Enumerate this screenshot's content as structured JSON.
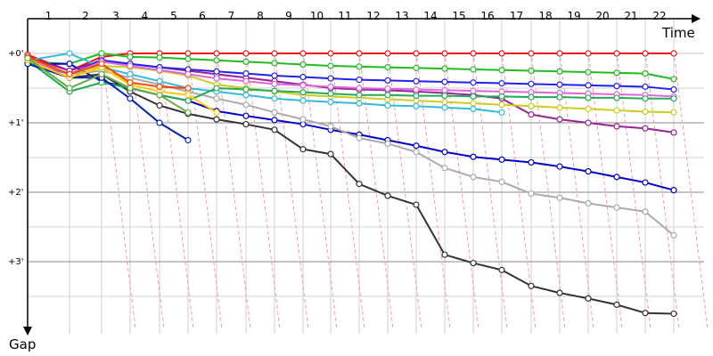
{
  "chart_data": {
    "type": "line",
    "title": "",
    "xlabel": "Time",
    "ylabel": "Gap",
    "y_unit": "minutes",
    "x_tick_labels": [
      "1",
      "2",
      "3",
      "4",
      "5",
      "6",
      "7",
      "8",
      "9",
      "10",
      "11",
      "12",
      "13",
      "14",
      "15",
      "16",
      "17",
      "18",
      "19",
      "20",
      "21",
      "22"
    ],
    "y_tick_labels": [
      "+0'",
      "+1'",
      "+2'",
      "+3'"
    ],
    "ylim": [
      0,
      4
    ],
    "grid": true,
    "legend": "none",
    "series": [
      {
        "color": "#ee1111",
        "points": [
          [
            0,
            0.02
          ],
          [
            1,
            0.25
          ],
          [
            2,
            0.05
          ],
          [
            3,
            0.0
          ],
          [
            4,
            0.0
          ],
          [
            5,
            0.0
          ],
          [
            6,
            0.0
          ],
          [
            7,
            0.0
          ],
          [
            8,
            0.0
          ],
          [
            9,
            0.0
          ],
          [
            10,
            0.0
          ],
          [
            11,
            0.0
          ],
          [
            12,
            0.0
          ],
          [
            13,
            0.0
          ],
          [
            14,
            0.0
          ],
          [
            15,
            0.0
          ],
          [
            16,
            0.0
          ],
          [
            17,
            0.0
          ],
          [
            18,
            0.0
          ],
          [
            19,
            0.0
          ],
          [
            20,
            0.0
          ],
          [
            21,
            0.0
          ],
          [
            22,
            0.0
          ]
        ]
      },
      {
        "color": "#22bb22",
        "points": [
          [
            0,
            0.12
          ],
          [
            1,
            0.15
          ],
          [
            2,
            0.0
          ],
          [
            3,
            0.05
          ],
          [
            4,
            0.06
          ],
          [
            5,
            0.08
          ],
          [
            6,
            0.1
          ],
          [
            7,
            0.12
          ],
          [
            8,
            0.14
          ],
          [
            9,
            0.16
          ],
          [
            10,
            0.18
          ],
          [
            11,
            0.19
          ],
          [
            12,
            0.2
          ],
          [
            13,
            0.21
          ],
          [
            14,
            0.22
          ],
          [
            15,
            0.23
          ],
          [
            16,
            0.24
          ],
          [
            17,
            0.25
          ],
          [
            18,
            0.26
          ],
          [
            19,
            0.27
          ],
          [
            20,
            0.28
          ],
          [
            21,
            0.29
          ],
          [
            22,
            0.37
          ]
        ]
      },
      {
        "color": "#0000cc",
        "points": [
          [
            0,
            0.15
          ],
          [
            1,
            0.15
          ],
          [
            2,
            0.4
          ],
          [
            3,
            0.5
          ],
          [
            4,
            0.6
          ],
          [
            5,
            0.68
          ],
          [
            6,
            0.83
          ],
          [
            7,
            0.9
          ],
          [
            8,
            0.96
          ],
          [
            9,
            1.02
          ],
          [
            10,
            1.1
          ],
          [
            11,
            1.17
          ],
          [
            12,
            1.25
          ],
          [
            13,
            1.33
          ],
          [
            14,
            1.42
          ],
          [
            15,
            1.49
          ],
          [
            16,
            1.53
          ],
          [
            17,
            1.57
          ],
          [
            18,
            1.63
          ],
          [
            19,
            1.7
          ],
          [
            20,
            1.78
          ],
          [
            21,
            1.86
          ],
          [
            22,
            1.97
          ]
        ]
      },
      {
        "color": "#333333",
        "points": [
          [
            0,
            0.1
          ],
          [
            1,
            0.35
          ],
          [
            2,
            0.3
          ],
          [
            3,
            0.55
          ],
          [
            4,
            0.75
          ],
          [
            5,
            0.87
          ],
          [
            6,
            0.95
          ],
          [
            7,
            1.02
          ],
          [
            8,
            1.1
          ],
          [
            9,
            1.38
          ],
          [
            10,
            1.45
          ],
          [
            11,
            1.88
          ],
          [
            12,
            2.05
          ],
          [
            13,
            2.18
          ],
          [
            14,
            2.9
          ],
          [
            15,
            3.02
          ],
          [
            16,
            3.12
          ],
          [
            17,
            3.35
          ],
          [
            18,
            3.45
          ],
          [
            19,
            3.53
          ],
          [
            20,
            3.62
          ],
          [
            21,
            3.74
          ],
          [
            22,
            3.75
          ]
        ]
      },
      {
        "color": "#aaaaaa",
        "points": [
          [
            0,
            0.1
          ],
          [
            1,
            0.3
          ],
          [
            2,
            0.25
          ],
          [
            3,
            0.35
          ],
          [
            4,
            0.45
          ],
          [
            5,
            0.55
          ],
          [
            6,
            0.65
          ],
          [
            7,
            0.74
          ],
          [
            8,
            0.85
          ],
          [
            9,
            0.95
          ],
          [
            10,
            1.05
          ],
          [
            11,
            1.22
          ],
          [
            12,
            1.3
          ],
          [
            13,
            1.42
          ],
          [
            14,
            1.65
          ],
          [
            15,
            1.78
          ],
          [
            16,
            1.85
          ],
          [
            17,
            2.02
          ],
          [
            18,
            2.08
          ],
          [
            19,
            2.16
          ],
          [
            20,
            2.22
          ],
          [
            21,
            2.28
          ],
          [
            22,
            2.62
          ]
        ]
      },
      {
        "color": "#992299",
        "points": [
          [
            0,
            0.05
          ],
          [
            1,
            0.25
          ],
          [
            2,
            0.1
          ],
          [
            3,
            0.15
          ],
          [
            4,
            0.2
          ],
          [
            5,
            0.25
          ],
          [
            6,
            0.3
          ],
          [
            7,
            0.35
          ],
          [
            8,
            0.4
          ],
          [
            9,
            0.45
          ],
          [
            10,
            0.5
          ],
          [
            11,
            0.52
          ],
          [
            12,
            0.53
          ],
          [
            13,
            0.55
          ],
          [
            14,
            0.57
          ],
          [
            15,
            0.6
          ],
          [
            16,
            0.65
          ],
          [
            17,
            0.88
          ],
          [
            18,
            0.95
          ],
          [
            19,
            1.0
          ],
          [
            20,
            1.05
          ],
          [
            21,
            1.08
          ],
          [
            22,
            1.14
          ]
        ]
      },
      {
        "color": "#cccc22",
        "points": [
          [
            0,
            0.08
          ],
          [
            1,
            0.3
          ],
          [
            2,
            0.18
          ],
          [
            3,
            0.2
          ],
          [
            4,
            0.25
          ],
          [
            5,
            0.32
          ],
          [
            6,
            0.45
          ],
          [
            7,
            0.5
          ],
          [
            8,
            0.55
          ],
          [
            9,
            0.6
          ],
          [
            10,
            0.62
          ],
          [
            11,
            0.64
          ],
          [
            12,
            0.66
          ],
          [
            13,
            0.68
          ],
          [
            14,
            0.7
          ],
          [
            15,
            0.72
          ],
          [
            16,
            0.74
          ],
          [
            17,
            0.76
          ],
          [
            18,
            0.78
          ],
          [
            19,
            0.8
          ],
          [
            20,
            0.82
          ],
          [
            21,
            0.84
          ],
          [
            22,
            0.85
          ]
        ]
      },
      {
        "color": "#33bbdd",
        "points": [
          [
            0,
            0.1
          ],
          [
            1,
            0.0
          ],
          [
            2,
            0.2
          ],
          [
            3,
            0.3
          ],
          [
            4,
            0.4
          ],
          [
            5,
            0.5
          ],
          [
            6,
            0.55
          ],
          [
            7,
            0.6
          ],
          [
            8,
            0.65
          ],
          [
            9,
            0.68
          ],
          [
            10,
            0.7
          ],
          [
            11,
            0.72
          ],
          [
            12,
            0.75
          ],
          [
            13,
            0.76
          ],
          [
            14,
            0.78
          ],
          [
            15,
            0.8
          ],
          [
            16,
            0.85
          ]
        ]
      },
      {
        "color": "#2222ee",
        "points": [
          [
            0,
            0.12
          ],
          [
            1,
            0.3
          ],
          [
            2,
            0.1
          ],
          [
            3,
            0.15
          ],
          [
            4,
            0.2
          ],
          [
            5,
            0.23
          ],
          [
            6,
            0.26
          ],
          [
            7,
            0.29
          ],
          [
            8,
            0.32
          ],
          [
            9,
            0.34
          ],
          [
            10,
            0.36
          ],
          [
            11,
            0.38
          ],
          [
            12,
            0.39
          ],
          [
            13,
            0.4
          ],
          [
            14,
            0.41
          ],
          [
            15,
            0.42
          ],
          [
            16,
            0.43
          ],
          [
            17,
            0.44
          ],
          [
            18,
            0.45
          ],
          [
            19,
            0.46
          ],
          [
            20,
            0.47
          ],
          [
            21,
            0.48
          ],
          [
            22,
            0.52
          ]
        ]
      },
      {
        "color": "#dd66dd",
        "points": [
          [
            0,
            0.1
          ],
          [
            1,
            0.3
          ],
          [
            2,
            0.12
          ],
          [
            3,
            0.18
          ],
          [
            4,
            0.24
          ],
          [
            5,
            0.3
          ],
          [
            6,
            0.36
          ],
          [
            7,
            0.4
          ],
          [
            8,
            0.44
          ],
          [
            9,
            0.46
          ],
          [
            10,
            0.48
          ],
          [
            11,
            0.5
          ],
          [
            12,
            0.51
          ],
          [
            13,
            0.52
          ],
          [
            14,
            0.53
          ],
          [
            15,
            0.54
          ],
          [
            16,
            0.55
          ],
          [
            17,
            0.56
          ],
          [
            18,
            0.57
          ],
          [
            19,
            0.58
          ],
          [
            20,
            0.59
          ],
          [
            21,
            0.6
          ],
          [
            22,
            0.62
          ]
        ]
      },
      {
        "color": "#22aa55",
        "points": [
          [
            0,
            0.1
          ],
          [
            1,
            0.55
          ],
          [
            2,
            0.42
          ],
          [
            3,
            0.5
          ],
          [
            4,
            0.6
          ],
          [
            5,
            0.68
          ],
          [
            6,
            0.5
          ],
          [
            7,
            0.52
          ],
          [
            8,
            0.54
          ],
          [
            9,
            0.56
          ],
          [
            10,
            0.58
          ],
          [
            11,
            0.6
          ],
          [
            12,
            0.6
          ],
          [
            13,
            0.61
          ],
          [
            14,
            0.61
          ],
          [
            15,
            0.62
          ],
          [
            16,
            0.62
          ],
          [
            17,
            0.63
          ],
          [
            18,
            0.63
          ],
          [
            19,
            0.64
          ],
          [
            20,
            0.64
          ],
          [
            21,
            0.65
          ],
          [
            22,
            0.65
          ]
        ]
      },
      {
        "color": "#0022bb",
        "points": [
          [
            0,
            0.15
          ],
          [
            1,
            0.35
          ],
          [
            2,
            0.35
          ],
          [
            3,
            0.65
          ],
          [
            4,
            1.0
          ],
          [
            5,
            1.25
          ]
        ]
      },
      {
        "color": "#ffcc00",
        "points": [
          [
            0,
            0.1
          ],
          [
            1,
            0.35
          ],
          [
            2,
            0.2
          ],
          [
            3,
            0.45
          ],
          [
            4,
            0.55
          ],
          [
            5,
            0.6
          ],
          [
            6,
            0.85
          ]
        ]
      },
      {
        "color": "#ff4400",
        "points": [
          [
            0,
            0.05
          ],
          [
            1,
            0.3
          ],
          [
            2,
            0.15
          ],
          [
            3,
            0.42
          ],
          [
            4,
            0.48
          ],
          [
            5,
            0.5
          ]
        ]
      },
      {
        "color": "#66aa44",
        "points": [
          [
            0,
            0.07
          ],
          [
            1,
            0.5
          ],
          [
            2,
            0.3
          ],
          [
            3,
            0.5
          ],
          [
            4,
            0.6
          ],
          [
            5,
            0.85
          ]
        ]
      }
    ]
  }
}
